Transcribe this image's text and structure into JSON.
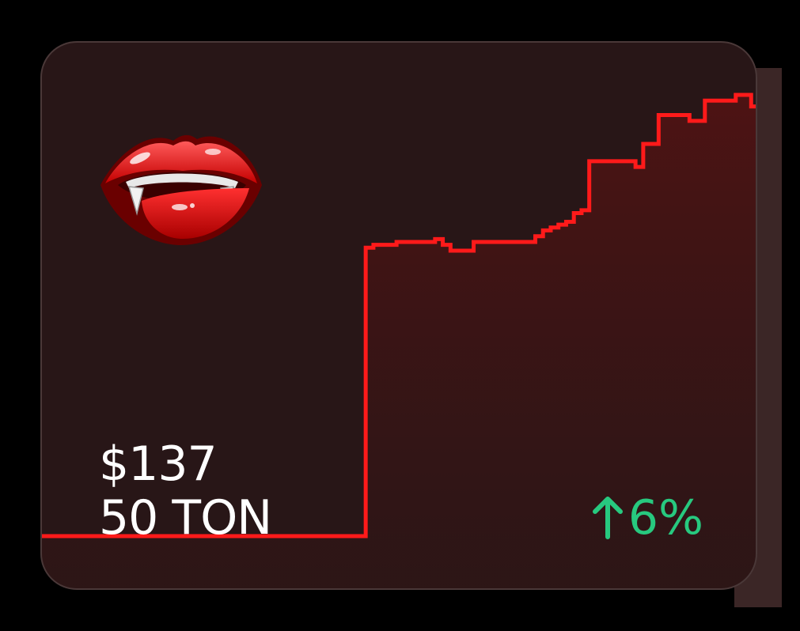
{
  "card": {
    "price_usd": "$137",
    "price_ton": "50 TON",
    "change_percent": "6%",
    "change_direction": "up",
    "emoji_icon": "vampire-lips-icon"
  },
  "colors": {
    "line": "#ff1a1a",
    "positive": "#27c97f",
    "card_bg": "#281617"
  },
  "chart_data": {
    "type": "line",
    "series": [
      {
        "values": [
          0,
          0,
          0,
          0,
          0,
          0,
          0,
          0,
          0,
          0,
          0,
          0,
          0,
          0,
          0,
          0,
          0,
          0,
          0,
          0,
          0,
          0,
          0,
          0,
          0,
          0,
          0,
          0,
          0,
          0,
          0,
          0,
          0,
          0,
          0,
          0,
          0,
          0,
          0,
          0,
          0,
          0,
          100,
          101,
          101,
          101,
          102,
          102,
          102,
          102,
          102,
          103,
          101,
          99,
          99,
          99,
          102,
          102,
          102,
          102,
          102,
          102,
          102,
          102,
          104,
          106,
          107,
          108,
          109,
          112,
          113,
          130,
          130,
          130,
          130,
          130,
          130,
          128,
          136,
          136,
          146,
          146,
          146,
          146,
          144,
          144,
          151,
          151,
          151,
          151,
          153,
          153,
          149,
          149
        ]
      }
    ]
  }
}
